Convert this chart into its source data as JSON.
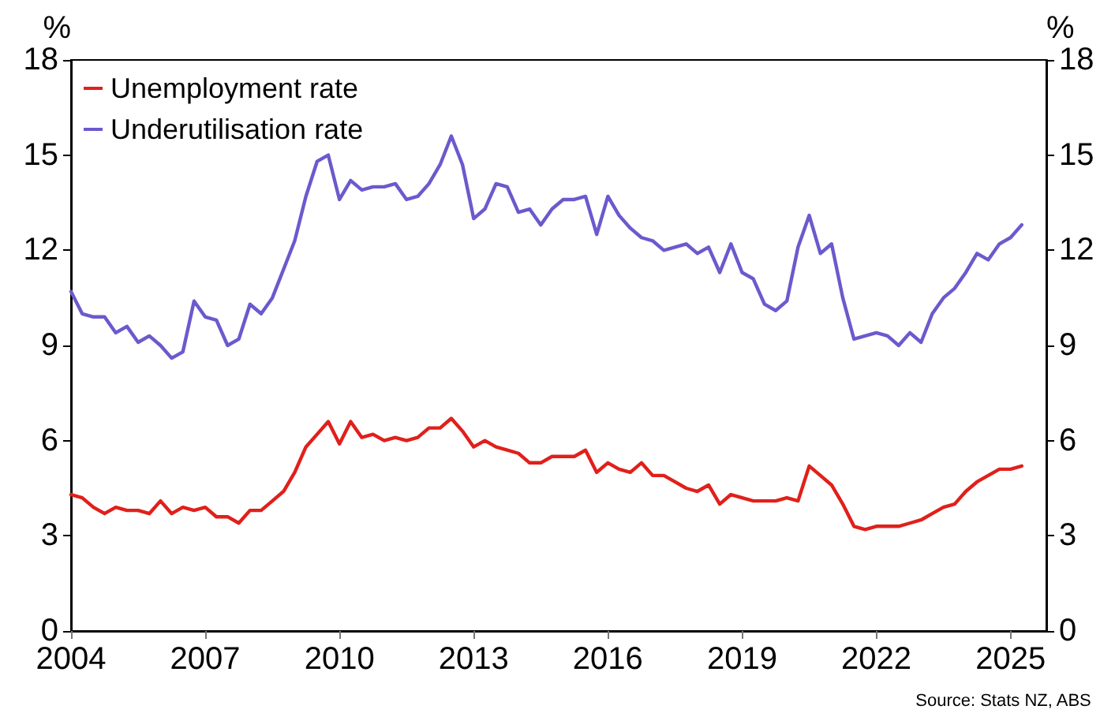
{
  "chart_data": {
    "type": "line",
    "ylabel": "%",
    "y2label": "%",
    "x": [
      2004,
      2004.25,
      2004.5,
      2004.75,
      2005,
      2005.25,
      2005.5,
      2005.75,
      2006,
      2006.25,
      2006.5,
      2006.75,
      2007,
      2007.25,
      2007.5,
      2007.75,
      2008,
      2008.25,
      2008.5,
      2008.75,
      2009,
      2009.25,
      2009.5,
      2009.75,
      2010,
      2010.25,
      2010.5,
      2010.75,
      2011,
      2011.25,
      2011.5,
      2011.75,
      2012,
      2012.25,
      2012.5,
      2012.75,
      2013,
      2013.25,
      2013.5,
      2013.75,
      2014,
      2014.25,
      2014.5,
      2014.75,
      2015,
      2015.25,
      2015.5,
      2015.75,
      2016,
      2016.25,
      2016.5,
      2016.75,
      2017,
      2017.25,
      2017.5,
      2017.75,
      2018,
      2018.25,
      2018.5,
      2018.75,
      2019,
      2019.25,
      2019.5,
      2019.75,
      2020,
      2020.25,
      2020.5,
      2020.75,
      2021,
      2021.25,
      2021.5,
      2021.75,
      2022,
      2022.25,
      2022.5,
      2022.75,
      2023,
      2023.25,
      2023.5,
      2023.75,
      2024,
      2024.25,
      2024.5,
      2024.75,
      2025,
      2025.25
    ],
    "series": [
      {
        "name": "Unemployment rate",
        "color": "#e0201b",
        "values": [
          4.3,
          4.2,
          3.9,
          3.7,
          3.9,
          3.8,
          3.8,
          3.7,
          4.1,
          3.7,
          3.9,
          3.8,
          3.9,
          3.6,
          3.6,
          3.4,
          3.8,
          3.8,
          4.1,
          4.4,
          5.0,
          5.8,
          6.2,
          6.6,
          5.9,
          6.6,
          6.1,
          6.2,
          6.0,
          6.1,
          6.0,
          6.1,
          6.4,
          6.4,
          6.7,
          6.3,
          5.8,
          6.0,
          5.8,
          5.7,
          5.6,
          5.3,
          5.3,
          5.5,
          5.5,
          5.5,
          5.7,
          5.0,
          5.3,
          5.1,
          5.0,
          5.3,
          4.9,
          4.9,
          4.7,
          4.5,
          4.4,
          4.6,
          4.0,
          4.3,
          4.2,
          4.1,
          4.1,
          4.1,
          4.2,
          4.1,
          5.2,
          4.9,
          4.6,
          4.0,
          3.3,
          3.2,
          3.3,
          3.3,
          3.3,
          3.4,
          3.5,
          3.7,
          3.9,
          4.0,
          4.4,
          4.7,
          4.9,
          5.1,
          5.1,
          5.2
        ]
      },
      {
        "name": "Underutilisation rate",
        "color": "#6a5acd",
        "values": [
          10.7,
          10.0,
          9.9,
          9.9,
          9.4,
          9.6,
          9.1,
          9.3,
          9.0,
          8.6,
          8.8,
          10.4,
          9.9,
          9.8,
          9.0,
          9.2,
          10.3,
          10.0,
          10.5,
          11.4,
          12.3,
          13.7,
          14.8,
          15.0,
          13.6,
          14.2,
          13.9,
          14.0,
          14.0,
          14.1,
          13.6,
          13.7,
          14.1,
          14.7,
          15.6,
          14.7,
          13.0,
          13.3,
          14.1,
          14.0,
          13.2,
          13.3,
          12.8,
          13.3,
          13.6,
          13.6,
          13.7,
          12.5,
          13.7,
          13.1,
          12.7,
          12.4,
          12.3,
          12.0,
          12.1,
          12.2,
          11.9,
          12.1,
          11.3,
          12.2,
          11.3,
          11.1,
          10.3,
          10.1,
          10.4,
          12.1,
          13.1,
          11.9,
          12.2,
          10.5,
          9.2,
          9.3,
          9.4,
          9.3,
          9.0,
          9.4,
          9.1,
          10.0,
          10.5,
          10.8,
          11.3,
          11.9,
          11.7,
          12.2,
          12.4,
          12.8
        ]
      }
    ],
    "xlim": [
      2004,
      2025.8
    ],
    "xticks": [
      2004,
      2007,
      2010,
      2013,
      2016,
      2019,
      2022,
      2025
    ],
    "ylim": [
      0,
      18
    ],
    "yticks": [
      0,
      3,
      6,
      9,
      12,
      15,
      18
    ],
    "y2lim": [
      0,
      18
    ],
    "y2ticks": [
      0,
      3,
      6,
      9,
      12,
      15,
      18
    ],
    "legend": "top left",
    "grid": false,
    "marker": "none",
    "line_style": "solid",
    "annotations": [
      "Source: Stats NZ, ABS"
    ]
  }
}
